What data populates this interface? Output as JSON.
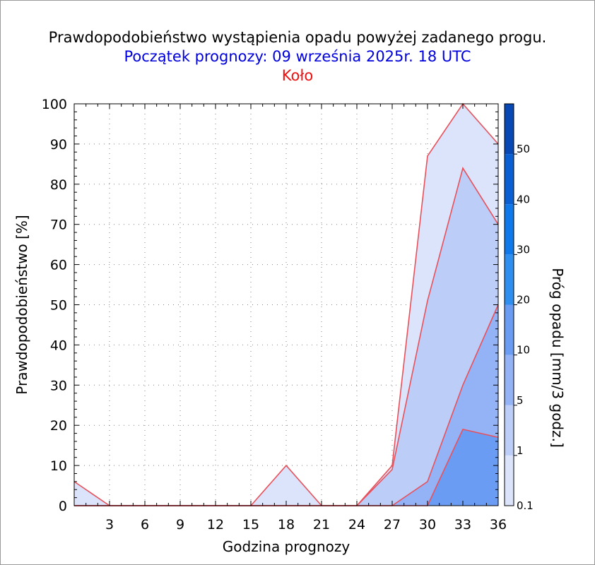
{
  "header": {
    "title": "Prawdopodobieństwo wystąpienia opadu powyżej zadanego progu.",
    "subtitle": "Początek prognozy: 09 września 2025r. 18 UTC",
    "location": "Koło"
  },
  "chart_data": {
    "type": "area",
    "xlabel": "Godzina prognozy",
    "ylabel": "Prawdopodobieństwo [%]",
    "colorbar_label": "Próg opadu [mm/3 godz.]",
    "x": [
      0,
      3,
      6,
      9,
      12,
      15,
      18,
      21,
      24,
      27,
      30,
      33,
      36
    ],
    "x_tick_labels": [
      "3",
      "6",
      "9",
      "12",
      "15",
      "18",
      "21",
      "24",
      "27",
      "30",
      "33",
      "36"
    ],
    "y_tick_labels": [
      "0",
      "10",
      "20",
      "30",
      "40",
      "50",
      "60",
      "70",
      "80",
      "90",
      "100"
    ],
    "xlim": [
      0,
      36
    ],
    "ylim": [
      0,
      100
    ],
    "grid": true,
    "series": [
      {
        "name": "0.1",
        "color": "#dce4fb",
        "values": [
          6,
          0,
          0,
          0,
          0,
          0,
          10,
          0,
          0,
          10,
          87,
          100,
          90
        ]
      },
      {
        "name": "1",
        "color": "#bccdf8",
        "values": [
          0,
          0,
          0,
          0,
          0,
          0,
          0,
          0,
          0,
          9,
          51,
          84,
          70
        ]
      },
      {
        "name": "5",
        "color": "#94b2f6",
        "values": [
          0,
          0,
          0,
          0,
          0,
          0,
          0,
          0,
          0,
          0,
          6,
          30,
          50
        ]
      },
      {
        "name": "10",
        "color": "#6a9cf4",
        "values": [
          0,
          0,
          0,
          0,
          0,
          0,
          0,
          0,
          0,
          0,
          0,
          19,
          17
        ]
      }
    ],
    "colorbar": {
      "labels": [
        "0.1",
        "1",
        "5",
        "10",
        "20",
        "30",
        "40",
        "50"
      ],
      "colors": [
        "#dce4fb",
        "#bccdf8",
        "#94b2f6",
        "#6a9cf4",
        "#2f8ff0",
        "#0f78ea",
        "#0a60d2",
        "#0848b4"
      ]
    },
    "line_color": "#e8505a"
  }
}
